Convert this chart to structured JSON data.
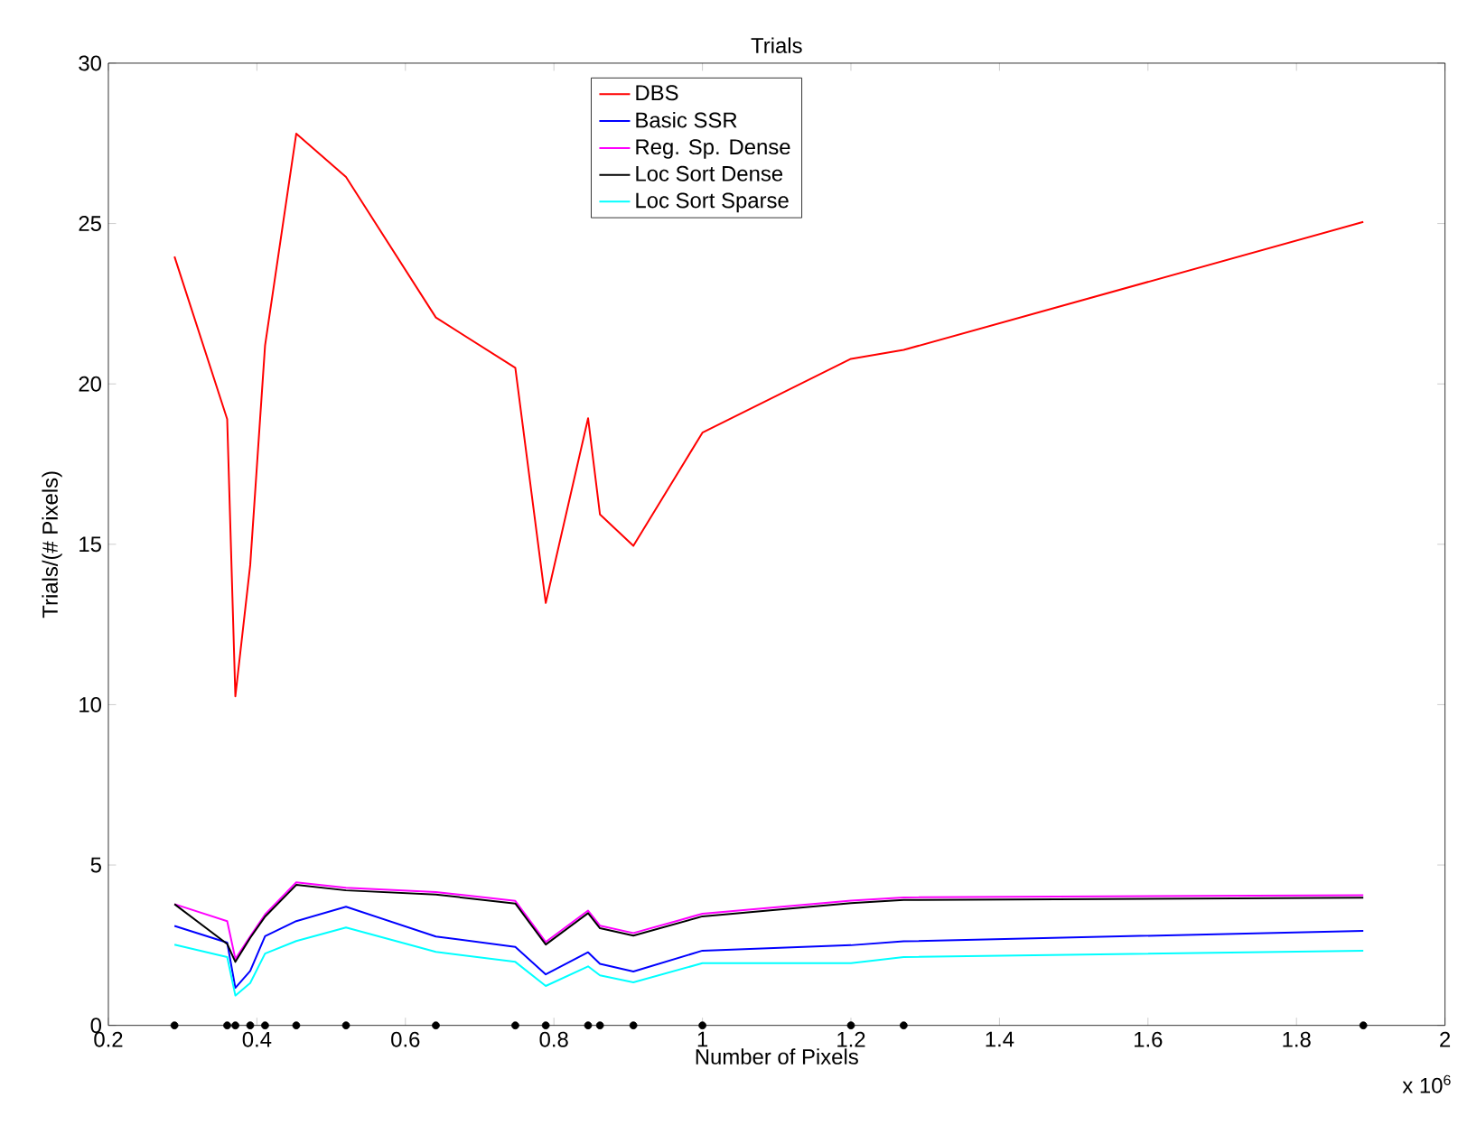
{
  "chart_data": {
    "type": "line",
    "title": "Trials",
    "xlabel": "Number of Pixels",
    "ylabel": "Trials/(# Pixels)",
    "x": [
      0.289,
      0.36,
      0.371,
      0.391,
      0.411,
      0.453,
      0.52,
      0.641,
      0.748,
      0.789,
      0.846,
      0.862,
      0.907,
      1.0,
      1.2,
      1.271,
      1.89
    ],
    "series": [
      {
        "name": "DBS",
        "color": "#ff0000",
        "values": [
          23.97,
          18.9,
          10.26,
          14.35,
          21.2,
          27.8,
          26.45,
          22.07,
          20.5,
          13.17,
          18.93,
          15.93,
          14.95,
          18.48,
          20.78,
          21.06,
          25.05
        ]
      },
      {
        "name": "Basic SSR",
        "color": "#0000ff",
        "values": [
          3.1,
          2.58,
          1.17,
          1.7,
          2.78,
          3.25,
          3.7,
          2.77,
          2.45,
          1.59,
          2.28,
          1.92,
          1.68,
          2.33,
          2.5,
          2.62,
          2.95
        ]
      },
      {
        "name": "Reg. Sp. Dense",
        "color": "#ff00ff",
        "values": [
          3.78,
          3.25,
          2.07,
          2.78,
          3.46,
          4.46,
          4.29,
          4.16,
          3.88,
          2.6,
          3.58,
          3.11,
          2.88,
          3.48,
          3.89,
          3.99,
          4.06
        ]
      },
      {
        "name": "Loc Sort Dense",
        "color": "#000000",
        "values": [
          3.78,
          2.54,
          1.98,
          2.73,
          3.39,
          4.38,
          4.21,
          4.08,
          3.8,
          2.52,
          3.5,
          3.03,
          2.8,
          3.4,
          3.81,
          3.91,
          3.98
        ]
      },
      {
        "name": "Loc Sort Sparse",
        "color": "#00ffff",
        "values": [
          2.52,
          2.13,
          0.93,
          1.32,
          2.24,
          2.63,
          3.05,
          2.29,
          1.98,
          1.23,
          1.84,
          1.56,
          1.34,
          1.94,
          1.94,
          2.13,
          2.33
        ]
      },
      {
        "type": "scatter",
        "color": "#000000",
        "values": [
          0,
          0,
          0,
          0,
          0,
          0,
          0,
          0,
          0,
          0,
          0,
          0,
          0,
          0,
          0,
          0,
          0
        ]
      }
    ],
    "xlim": [
      0.2,
      2
    ],
    "xticks": [
      0.2,
      0.4,
      0.6,
      0.8,
      1,
      1.2,
      1.4,
      1.6,
      1.8,
      2
    ],
    "ylim": [
      0,
      30
    ],
    "yticks": [
      0,
      5,
      10,
      15,
      20,
      25,
      30
    ],
    "annotations": [
      "x 10$^{6}$"
    ],
    "legend": "top",
    "line_style": "solid",
    "grid": false
  }
}
